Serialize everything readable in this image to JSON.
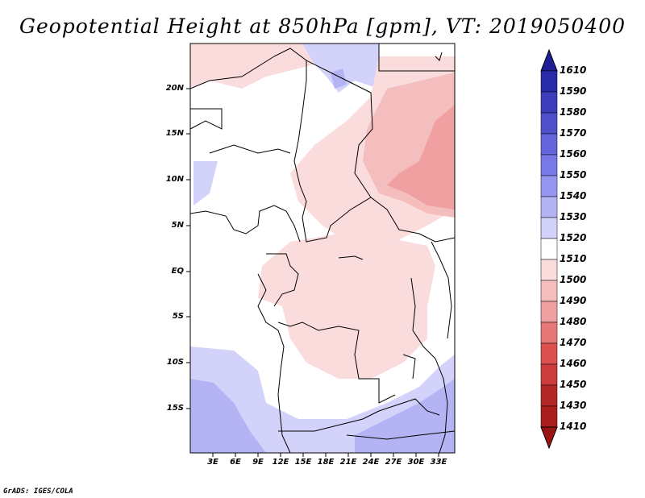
{
  "title": "Geopotential Height at 850hPa [gpm], VT: 2019050400",
  "footer": "GrADS: IGES/COLA",
  "map": {
    "variable": "Geopotential Height at 850hPa",
    "units": "gpm",
    "valid_time": "2019050400",
    "lat_ticks": [
      "20N",
      "15N",
      "10N",
      "5N",
      "EQ",
      "5S",
      "10S",
      "15S"
    ],
    "lon_ticks": [
      "3E",
      "6E",
      "9E",
      "12E",
      "15E",
      "18E",
      "21E",
      "24E",
      "27E",
      "30E",
      "33E"
    ]
  },
  "colorbar": {
    "levels": [
      "1610",
      "1590",
      "1580",
      "1570",
      "1560",
      "1550",
      "1540",
      "1530",
      "1520",
      "1510",
      "1500",
      "1490",
      "1480",
      "1470",
      "1460",
      "1450",
      "1430",
      "1410"
    ],
    "colors": [
      "#1e1e96",
      "#282aa8",
      "#3c3cbc",
      "#5050cc",
      "#6464dc",
      "#7878e6",
      "#9696f0",
      "#b4b4f5",
      "#d2d2fa",
      "#ffffff",
      "#fadcdc",
      "#f5bebe",
      "#f0a0a0",
      "#e67878",
      "#dc5050",
      "#cc3c3c",
      "#b42828",
      "#9a1414"
    ]
  }
}
